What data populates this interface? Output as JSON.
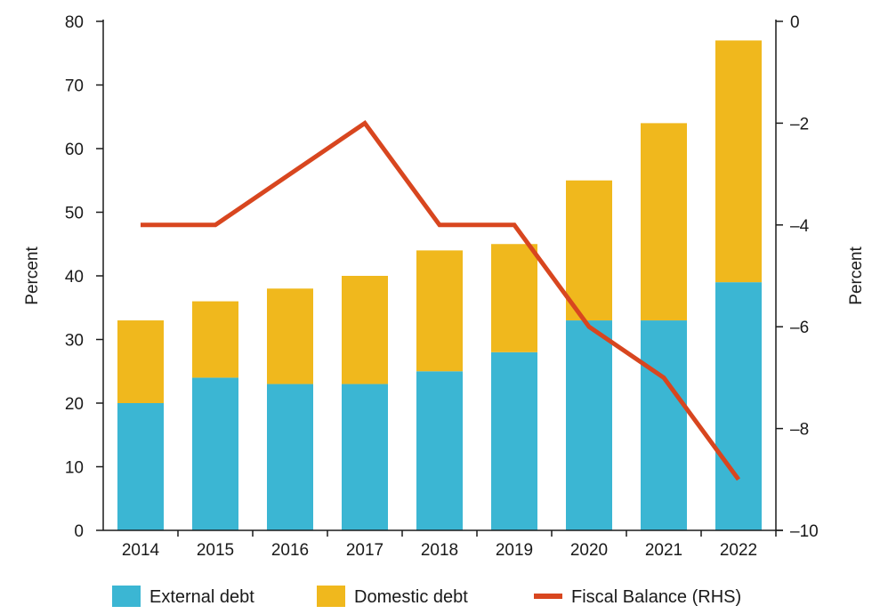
{
  "chart_data": {
    "type": "bar",
    "stacked": true,
    "categories": [
      "2014",
      "2015",
      "2016",
      "2017",
      "2018",
      "2019",
      "2020",
      "2021",
      "2022"
    ],
    "series": [
      {
        "name": "External debt",
        "type": "bar",
        "axis": "left",
        "color": "#3BB6D3",
        "values": [
          20,
          24,
          23,
          23,
          25,
          28,
          33,
          33,
          39
        ]
      },
      {
        "name": "Domestic debt",
        "type": "bar",
        "axis": "left",
        "color": "#F0B81D",
        "values": [
          13,
          12,
          15,
          17,
          19,
          17,
          22,
          31,
          38
        ]
      },
      {
        "name": "Fiscal Balance (RHS)",
        "type": "line",
        "axis": "right",
        "color": "#D8461F",
        "values": [
          -4,
          -4,
          -3,
          -2,
          -4,
          -4,
          -6,
          -7,
          -9
        ]
      }
    ],
    "ylabel": "Percent",
    "ylabel_right": "Percent",
    "ylim": [
      0,
      80
    ],
    "ylim_right": [
      -10,
      0
    ],
    "yticks": [
      0,
      10,
      20,
      30,
      40,
      50,
      60,
      70,
      80
    ],
    "yticks_right": [
      0,
      -2,
      -4,
      -6,
      -8,
      -10
    ],
    "yticks_right_labels": [
      "0",
      "–2",
      "–4",
      "–6",
      "–8",
      "–10"
    ],
    "grid": false,
    "legend_position": "bottom"
  }
}
